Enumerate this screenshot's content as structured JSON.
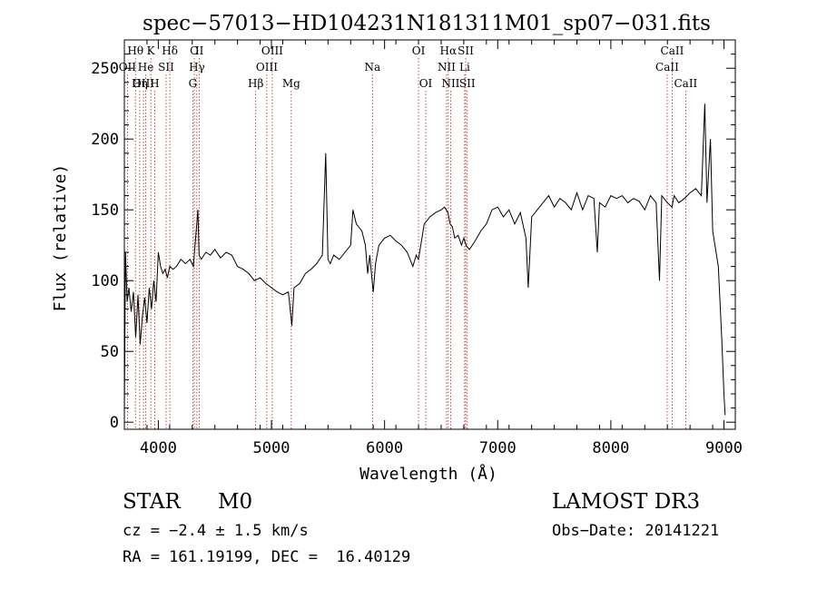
{
  "chart_data": {
    "type": "line",
    "title": "spec−57013−HD104231N181311M01_sp07−031.fits",
    "xlabel": "Wavelength (Å)",
    "ylabel": "Flux (relative)",
    "xlim": [
      3700,
      9100
    ],
    "ylim": [
      -5,
      270
    ],
    "xticks": [
      4000,
      5000,
      6000,
      7000,
      8000,
      9000
    ],
    "yticks": [
      0,
      50,
      100,
      150,
      200,
      250
    ],
    "series": [
      {
        "name": "flux",
        "x": [
          3700,
          3710,
          3725,
          3740,
          3760,
          3780,
          3800,
          3820,
          3840,
          3860,
          3880,
          3900,
          3920,
          3940,
          3960,
          3980,
          4000,
          4020,
          4040,
          4060,
          4080,
          4100,
          4130,
          4160,
          4200,
          4240,
          4280,
          4310,
          4330,
          4350,
          4360,
          4380,
          4420,
          4460,
          4500,
          4550,
          4600,
          4650,
          4700,
          4750,
          4800,
          4850,
          4900,
          4950,
          5000,
          5050,
          5100,
          5150,
          5180,
          5200,
          5250,
          5300,
          5350,
          5400,
          5450,
          5480,
          5500,
          5520,
          5550,
          5600,
          5650,
          5700,
          5720,
          5750,
          5800,
          5830,
          5850,
          5870,
          5890,
          5900,
          5920,
          5950,
          6000,
          6050,
          6100,
          6150,
          6200,
          6250,
          6280,
          6300,
          6330,
          6350,
          6400,
          6450,
          6500,
          6530,
          6560,
          6580,
          6600,
          6620,
          6650,
          6680,
          6700,
          6720,
          6750,
          6800,
          6850,
          6900,
          6950,
          7000,
          7050,
          7100,
          7150,
          7200,
          7250,
          7270,
          7300,
          7350,
          7400,
          7450,
          7500,
          7550,
          7600,
          7650,
          7700,
          7750,
          7800,
          7850,
          7880,
          7900,
          7950,
          8000,
          8050,
          8100,
          8150,
          8200,
          8250,
          8300,
          8350,
          8400,
          8430,
          8450,
          8500,
          8540,
          8560,
          8600,
          8650,
          8700,
          8750,
          8800,
          8830,
          8850,
          8880,
          8900,
          8950,
          8980,
          9000,
          9010
        ],
        "values": [
          5,
          120,
          85,
          95,
          78,
          92,
          60,
          90,
          55,
          75,
          88,
          70,
          95,
          80,
          100,
          85,
          120,
          110,
          105,
          108,
          102,
          110,
          108,
          110,
          115,
          112,
          115,
          110,
          130,
          150,
          118,
          115,
          120,
          118,
          122,
          116,
          120,
          118,
          110,
          108,
          105,
          100,
          102,
          98,
          95,
          92,
          90,
          92,
          68,
          95,
          98,
          105,
          108,
          112,
          118,
          190,
          115,
          112,
          118,
          115,
          120,
          125,
          150,
          140,
          135,
          125,
          105,
          118,
          100,
          92,
          112,
          125,
          130,
          132,
          128,
          125,
          120,
          110,
          118,
          115,
          130,
          140,
          145,
          148,
          150,
          152,
          148,
          140,
          138,
          130,
          132,
          125,
          130,
          125,
          122,
          128,
          135,
          140,
          150,
          152,
          145,
          150,
          140,
          148,
          130,
          95,
          145,
          150,
          155,
          160,
          152,
          158,
          155,
          150,
          162,
          150,
          160,
          158,
          120,
          155,
          152,
          160,
          158,
          160,
          155,
          158,
          156,
          150,
          160,
          155,
          100,
          160,
          155,
          152,
          160,
          155,
          158,
          162,
          165,
          160,
          225,
          155,
          200,
          135,
          110,
          60,
          20,
          5
        ]
      }
    ],
    "line_markers": [
      {
        "label": "Hθ",
        "wave": 3798,
        "row": 0
      },
      {
        "label": "OII",
        "wave": 3727,
        "row": 1
      },
      {
        "label": "OIII",
        "wave": 3869,
        "row": 2
      },
      {
        "label": "He",
        "wave": 3889,
        "row": 1
      },
      {
        "label": "Hη",
        "wave": 3835,
        "row": 2
      },
      {
        "label": "K",
        "wave": 3934,
        "row": 0
      },
      {
        "label": "H",
        "wave": 3968,
        "row": 2
      },
      {
        "label": "SII",
        "wave": 4069,
        "row": 1
      },
      {
        "label": "Hδ",
        "wave": 4102,
        "row": 0
      },
      {
        "label": "G",
        "wave": 4305,
        "row": 2
      },
      {
        "label": "O",
        "wave": 4318,
        "row": 0
      },
      {
        "label": "Hγ",
        "wave": 4341,
        "row": 1
      },
      {
        "label": "II",
        "wave": 4363,
        "row": 0
      },
      {
        "label": "Hβ",
        "wave": 4861,
        "row": 2
      },
      {
        "label": "OIII",
        "wave": 4959,
        "row": 1
      },
      {
        "label": "OIII",
        "wave": 5007,
        "row": 0
      },
      {
        "label": "Mg",
        "wave": 5175,
        "row": 2
      },
      {
        "label": "Na",
        "wave": 5893,
        "row": 1
      },
      {
        "label": "OI",
        "wave": 6300,
        "row": 0
      },
      {
        "label": "OI",
        "wave": 6364,
        "row": 2
      },
      {
        "label": "NII",
        "wave": 6548,
        "row": 1
      },
      {
        "label": "Hα",
        "wave": 6563,
        "row": 0
      },
      {
        "label": "NII",
        "wave": 6584,
        "row": 2
      },
      {
        "label": "Li",
        "wave": 6708,
        "row": 1
      },
      {
        "label": "SII",
        "wave": 6717,
        "row": 0
      },
      {
        "label": "SII",
        "wave": 6731,
        "row": 2
      },
      {
        "label": "CaII",
        "wave": 8498,
        "row": 1
      },
      {
        "label": "CaII",
        "wave": 8542,
        "row": 0
      },
      {
        "label": "CaII",
        "wave": 8662,
        "row": 2
      }
    ]
  },
  "info": {
    "object_class": "STAR",
    "subclass": "M0",
    "survey": "LAMOST DR3",
    "cz_line": "cz = −2.4 ± 1.5 km/s",
    "obs_date_line": "Obs−Date: 20141221",
    "coords_line": "RA = 161.19199, DEC =  16.40129"
  },
  "colors": {
    "axis": "#000000",
    "spectrum": "#000000",
    "marker_line": "#b22222",
    "background": "#ffffff"
  }
}
